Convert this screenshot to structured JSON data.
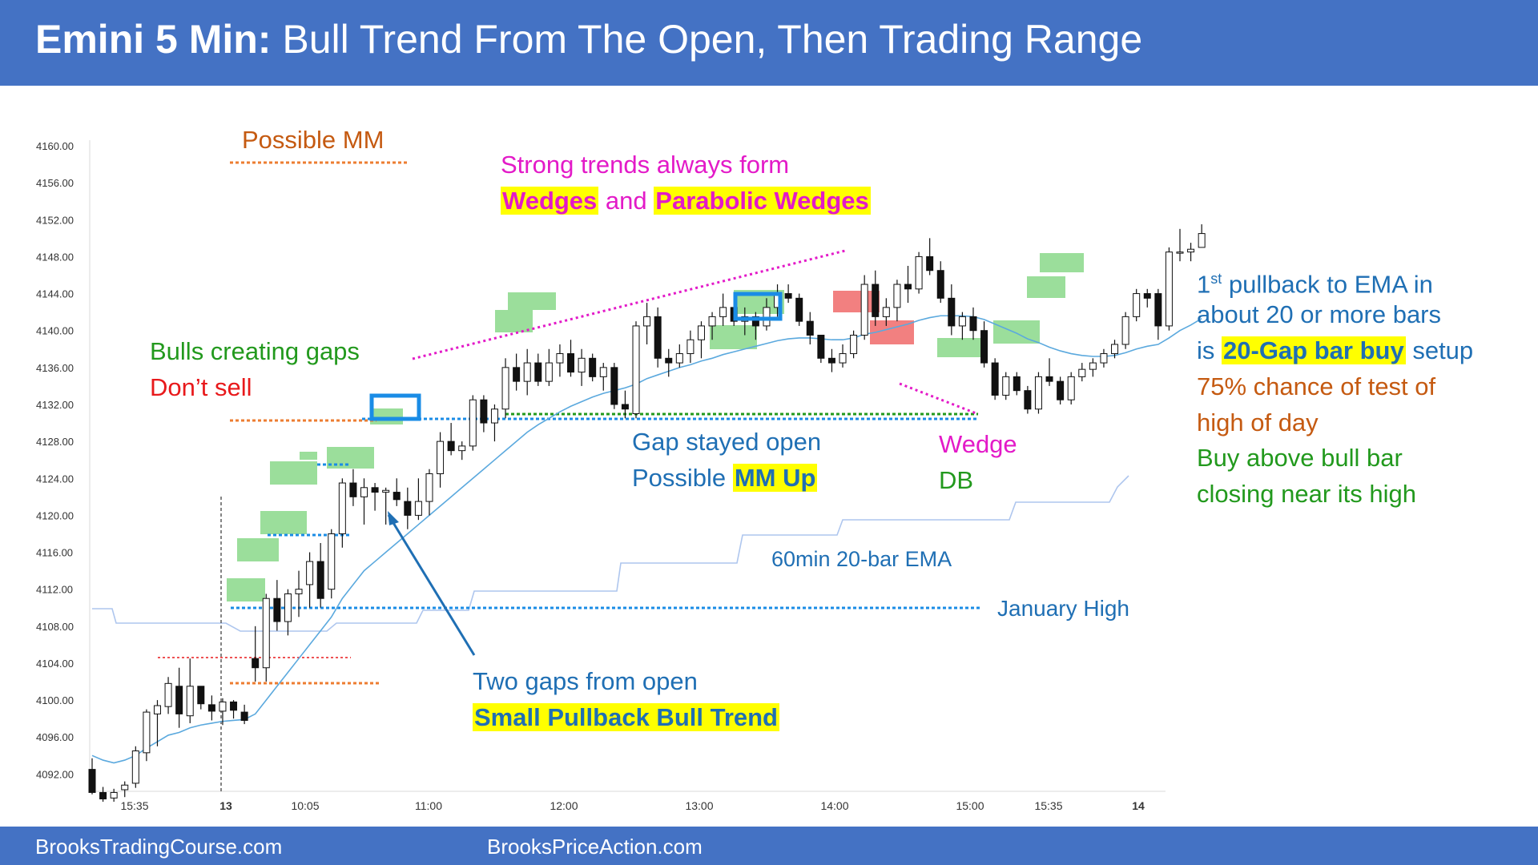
{
  "header": {
    "title_bold": "Emini 5 Min:",
    "title_rest": "Bull Trend From The Open, Then Trading Range",
    "bg_color": "#4472c4"
  },
  "footer": {
    "left": "BrooksTradingCourse.com",
    "right": "BrooksPriceAction.com"
  },
  "annotations": {
    "possible_mm": "Possible MM",
    "strong_trends": "Strong trends always form",
    "wedges": "Wedges",
    "and": "and",
    "parabolic_wedges": "Parabolic Wedges",
    "bulls_gaps": "Bulls creating gaps",
    "dont_sell": "Don’t sell",
    "gap_open": "Gap stayed open",
    "possible": "Possible",
    "mm_up": "MM Up",
    "wedge": "Wedge",
    "db": "DB",
    "ema60": "60min 20-bar EMA",
    "jan_high": "January High",
    "two_gaps": "Two gaps from open",
    "small_pullback": "Small Pullback Bull Trend",
    "r1_num": "1",
    "r1_sup": "st",
    "r1_rest": " pullback to EMA in",
    "r2": "about 20 or more bars",
    "r3_is": "is",
    "r3_hl": "20-Gap bar buy",
    "r3_rest": "setup",
    "r4": "75% chance of test of",
    "r5": "high of day",
    "r6": "Buy above bull bar",
    "r7": "closing near its high"
  },
  "colors": {
    "bull_zone": "#66cc66",
    "bear_zone": "#ee5555",
    "box": "#1a8ce6",
    "ema": "#5ba9de",
    "ema60": "#aec6ee",
    "blue_text": "#1f6fb4",
    "green_text": "#22991d",
    "red_text": "#e8191b",
    "orange_text": "#c55a11",
    "magenta": "#e31ac8"
  },
  "chart_data": {
    "type": "candlestick",
    "y_ticks": [
      "4160.00",
      "4156.00",
      "4152.00",
      "4148.00",
      "4144.00",
      "4140.00",
      "4136.00",
      "4132.00",
      "4128.00",
      "4124.00",
      "4120.00",
      "4116.00",
      "4112.00",
      "4108.00",
      "4104.00",
      "4100.00",
      "4096.00",
      "4092.00"
    ],
    "x_ticks": [
      "15:35",
      "13",
      "10:05",
      "11:00",
      "12:00",
      "13:00",
      "14:00",
      "15:00",
      "15:35",
      "14"
    ],
    "ylim": [
      4088.5,
      4160
    ],
    "bars": [
      [
        4092.5,
        4093.7,
        4089.8,
        4090.0
      ],
      [
        4090.0,
        4090.6,
        4089.0,
        4089.3
      ],
      [
        4089.4,
        4090.4,
        4089.0,
        4090.0
      ],
      [
        4090.3,
        4091.2,
        4089.5,
        4090.8
      ],
      [
        4091.0,
        4095.0,
        4090.5,
        4094.5
      ],
      [
        4094.3,
        4099.0,
        4093.4,
        4098.7
      ],
      [
        4098.5,
        4100.0,
        4095.0,
        4099.4
      ],
      [
        4099.3,
        4102.5,
        4098.5,
        4101.8
      ],
      [
        4101.5,
        4103.5,
        4097.0,
        4098.5
      ],
      [
        4098.3,
        4104.5,
        4097.5,
        4101.5
      ],
      [
        4101.5,
        4101.5,
        4099.0,
        4099.6
      ],
      [
        4099.5,
        4100.5,
        4097.8,
        4098.8
      ],
      [
        4098.8,
        4100.2,
        4097.3,
        4099.8
      ],
      [
        4099.8,
        4100.0,
        4098.0,
        4098.9
      ],
      [
        4098.7,
        4099.5,
        4097.4,
        4097.8
      ],
      [
        4104.5,
        4108.0,
        4102.0,
        4103.5
      ],
      [
        4103.5,
        4111.5,
        4102.0,
        4111.0
      ],
      [
        4111.0,
        4113.0,
        4107.5,
        4108.5
      ],
      [
        4108.5,
        4112.0,
        4107.0,
        4111.5
      ],
      [
        4111.5,
        4114.0,
        4109.0,
        4112.0
      ],
      [
        4112.5,
        4116.0,
        4110.0,
        4115.0
      ],
      [
        4115.0,
        4117.0,
        4110.0,
        4111.0
      ],
      [
        4112.0,
        4118.5,
        4111.0,
        4118.0
      ],
      [
        4118.0,
        4124.0,
        4116.5,
        4123.5
      ],
      [
        4123.5,
        4125.0,
        4121.0,
        4122.0
      ],
      [
        4122.0,
        4124.0,
        4119.0,
        4123.0
      ],
      [
        4123.0,
        4123.5,
        4120.5,
        4122.5
      ],
      [
        4122.5,
        4123.0,
        4119.0,
        4122.7
      ],
      [
        4122.5,
        4124.0,
        4121.0,
        4121.7
      ],
      [
        4121.5,
        4123.0,
        4118.5,
        4120.0
      ],
      [
        4120.0,
        4124.0,
        4119.5,
        4121.5
      ],
      [
        4121.5,
        4125.0,
        4120.0,
        4124.5
      ],
      [
        4124.5,
        4129.0,
        4123.0,
        4128.0
      ],
      [
        4128.0,
        4130.0,
        4126.5,
        4127.0
      ],
      [
        4127.0,
        4128.0,
        4126.0,
        4127.5
      ],
      [
        4127.5,
        4133.0,
        4127.0,
        4132.5
      ],
      [
        4132.5,
        4133.0,
        4129.0,
        4130.0
      ],
      [
        4130.0,
        4132.0,
        4128.0,
        4131.5
      ],
      [
        4131.5,
        4137.0,
        4130.5,
        4136.0
      ],
      [
        4136.0,
        4137.5,
        4133.5,
        4134.5
      ],
      [
        4134.5,
        4138.0,
        4133.0,
        4136.5
      ],
      [
        4136.5,
        4137.5,
        4134.0,
        4134.5
      ],
      [
        4134.5,
        4138.0,
        4134.0,
        4136.5
      ],
      [
        4136.5,
        4138.5,
        4135.0,
        4137.5
      ],
      [
        4137.5,
        4139.0,
        4135.0,
        4135.5
      ],
      [
        4135.5,
        4138.0,
        4134.0,
        4137.0
      ],
      [
        4137.0,
        4137.5,
        4134.5,
        4135.0
      ],
      [
        4135.0,
        4136.5,
        4133.5,
        4136.0
      ],
      [
        4136.0,
        4136.5,
        4131.5,
        4132.0
      ],
      [
        4132.0,
        4133.5,
        4130.5,
        4131.5
      ],
      [
        4131.0,
        4141.0,
        4130.5,
        4140.5
      ],
      [
        4140.5,
        4143.0,
        4138.5,
        4141.5
      ],
      [
        4141.5,
        4142.5,
        4136.0,
        4137.0
      ],
      [
        4137.0,
        4138.0,
        4135.0,
        4136.5
      ],
      [
        4136.5,
        4138.5,
        4136.0,
        4137.5
      ],
      [
        4137.5,
        4140.0,
        4136.5,
        4139.0
      ],
      [
        4139.0,
        4141.0,
        4137.0,
        4140.5
      ],
      [
        4140.5,
        4142.0,
        4139.0,
        4141.5
      ],
      [
        4141.5,
        4144.0,
        4140.5,
        4142.5
      ],
      [
        4142.5,
        4143.5,
        4140.5,
        4141.0
      ],
      [
        4141.0,
        4142.5,
        4139.5,
        4141.5
      ],
      [
        4141.5,
        4142.0,
        4139.0,
        4140.5
      ],
      [
        4140.5,
        4143.5,
        4140.0,
        4142.5
      ],
      [
        4142.5,
        4145.0,
        4141.5,
        4144.0
      ],
      [
        4144.0,
        4145.0,
        4143.0,
        4143.5
      ],
      [
        4143.5,
        4144.0,
        4140.5,
        4141.0
      ],
      [
        4141.0,
        4142.0,
        4138.5,
        4139.5
      ],
      [
        4139.5,
        4139.5,
        4136.5,
        4137.0
      ],
      [
        4137.0,
        4138.0,
        4135.5,
        4136.5
      ],
      [
        4136.5,
        4138.5,
        4136.0,
        4137.5
      ],
      [
        4137.5,
        4140.0,
        4137.0,
        4139.5
      ],
      [
        4139.5,
        4146.0,
        4139.0,
        4145.0
      ],
      [
        4145.0,
        4146.5,
        4140.5,
        4141.5
      ],
      [
        4141.5,
        4143.5,
        4140.5,
        4142.5
      ],
      [
        4142.5,
        4145.5,
        4141.0,
        4145.0
      ],
      [
        4145.0,
        4147.0,
        4143.0,
        4144.5
      ],
      [
        4144.5,
        4148.5,
        4144.0,
        4148.0
      ],
      [
        4148.0,
        4150.0,
        4146.0,
        4146.5
      ],
      [
        4146.5,
        4147.5,
        4143.0,
        4143.5
      ],
      [
        4143.5,
        4145.0,
        4139.5,
        4140.5
      ],
      [
        4140.5,
        4142.0,
        4139.0,
        4141.5
      ],
      [
        4141.5,
        4142.5,
        4139.0,
        4140.0
      ],
      [
        4140.0,
        4141.0,
        4136.0,
        4136.5
      ],
      [
        4136.5,
        4137.0,
        4132.5,
        4133.0
      ],
      [
        4133.0,
        4135.5,
        4132.5,
        4135.0
      ],
      [
        4135.0,
        4135.5,
        4133.0,
        4133.5
      ],
      [
        4133.5,
        4134.0,
        4131.0,
        4131.5
      ],
      [
        4131.5,
        4135.5,
        4131.0,
        4135.0
      ],
      [
        4135.0,
        4137.0,
        4134.0,
        4134.5
      ],
      [
        4134.5,
        4135.0,
        4132.0,
        4132.5
      ],
      [
        4132.5,
        4135.5,
        4132.0,
        4135.0
      ],
      [
        4135.0,
        4136.5,
        4134.5,
        4135.8
      ],
      [
        4135.8,
        4137.0,
        4135.0,
        4136.5
      ],
      [
        4136.5,
        4138.0,
        4136.0,
        4137.5
      ],
      [
        4137.5,
        4139.0,
        4137.0,
        4138.5
      ],
      [
        4138.5,
        4142.0,
        4138.0,
        4141.5
      ],
      [
        4141.5,
        4144.5,
        4141.0,
        4144.0
      ],
      [
        4144.0,
        4144.5,
        4142.5,
        4143.5
      ],
      [
        4144.0,
        4144.5,
        4139.0,
        4140.5
      ],
      [
        4140.5,
        4149.0,
        4140.0,
        4148.5
      ],
      [
        4148.5,
        4151.0,
        4147.5,
        4148.5
      ],
      [
        4148.5,
        4149.5,
        4147.5,
        4148.8
      ],
      [
        4149.0,
        4151.5,
        4149.0,
        4150.5
      ]
    ],
    "ema_values": [
      4094,
      4093.5,
      4093.2,
      4093.5,
      4094,
      4094.8,
      4095.5,
      4096.2,
      4096.5,
      4097,
      4097.3,
      4097.5,
      4097.7,
      4097.8,
      4097.9,
      4098.5,
      4100,
      4101.5,
      4103,
      4104.5,
      4106,
      4107.5,
      4109,
      4111,
      4112.5,
      4114,
      4115,
      4116,
      4117,
      4118,
      4119,
      4120,
      4121,
      4122,
      4123,
      4124,
      4125,
      4126,
      4127,
      4128,
      4129,
      4129.8,
      4130.5,
      4131.2,
      4131.8,
      4132.3,
      4132.8,
      4133.2,
      4133.5,
      4133.8,
      4134.2,
      4134.8,
      4135.2,
      4135.6,
      4136,
      4136.3,
      4136.7,
      4137,
      4137.4,
      4137.7,
      4138,
      4138.3,
      4138.6,
      4138.9,
      4139.1,
      4139.2,
      4139.2,
      4139.1,
      4139,
      4139,
      4139.2,
      4139.6,
      4139.8,
      4140.1,
      4140.4,
      4140.7,
      4141.1,
      4141.4,
      4141.6,
      4141.6,
      4141.6,
      4141.5,
      4141.2,
      4140.7,
      4140.2,
      4139.7,
      4139.1,
      4138.7,
      4138.2,
      4137.8,
      4137.5,
      4137.3,
      4137.2,
      4137.2,
      4137.3,
      4137.6,
      4138,
      4138.3,
      4138.5,
      4139.2,
      4140,
      4140.6,
      4141.3
    ]
  }
}
